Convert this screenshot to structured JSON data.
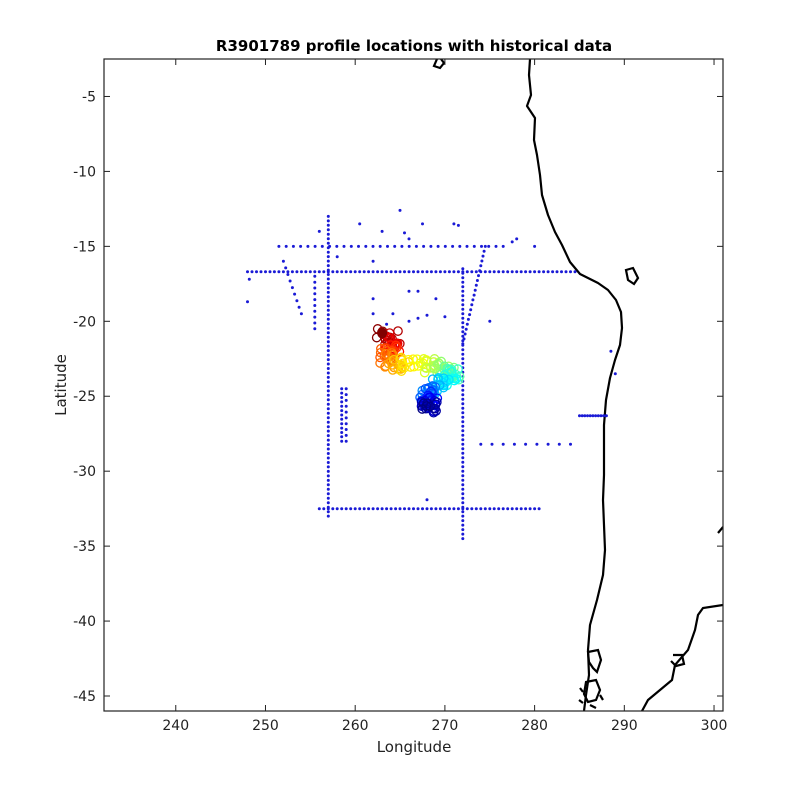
{
  "chart_data": {
    "type": "scatter",
    "title": "R3901789 profile locations with historical data",
    "xlabel": "Longitude",
    "ylabel": "Latitude",
    "xlim": [
      232,
      301
    ],
    "ylim": [
      -46,
      -2.5
    ],
    "xticks": [
      240,
      250,
      260,
      270,
      280,
      290,
      300
    ],
    "yticks": [
      -5,
      -10,
      -15,
      -20,
      -25,
      -30,
      -35,
      -40,
      -45
    ],
    "grid": false,
    "colors": {
      "historical": "#1a1ad6",
      "coastline": "#000000",
      "axis": "#222222"
    },
    "historical_tracks": [
      {
        "from": [
          248,
          -16.7
        ],
        "to": [
          284.5,
          -16.7
        ],
        "step": 0.5
      },
      {
        "from": [
          251.5,
          -15
        ],
        "to": [
          276.5,
          -15
        ],
        "step": 0.8
      },
      {
        "from": [
          256,
          -32.5
        ],
        "to": [
          280.5,
          -32.5
        ],
        "step": 0.5
      },
      {
        "from": [
          257,
          -13
        ],
        "to": [
          257,
          -33
        ],
        "step": 0.3
      },
      {
        "from": [
          272,
          -16.5
        ],
        "to": [
          272,
          -34.5
        ],
        "step": 0.3
      },
      {
        "from": [
          274.5,
          -15
        ],
        "to": [
          272,
          -21.5
        ],
        "step": 0.35
      },
      {
        "from": [
          274,
          -28.2
        ],
        "to": [
          284,
          -28.2
        ],
        "step": 1.25
      },
      {
        "from": [
          285,
          -26.3
        ],
        "to": [
          288,
          -26.3
        ],
        "step": 0.3
      },
      {
        "from": [
          258.5,
          -24.5
        ],
        "to": [
          258.5,
          -28
        ],
        "step": 0.3
      },
      {
        "from": [
          259,
          -24.5
        ],
        "to": [
          259,
          -28
        ],
        "step": 0.4
      },
      {
        "from": [
          252,
          -16
        ],
        "to": [
          254,
          -19.5
        ],
        "step": 0.5
      },
      {
        "from": [
          255.5,
          -17
        ],
        "to": [
          255.5,
          -20.5
        ],
        "step": 0.4
      }
    ],
    "historical_points": [
      [
        248,
        -18.7
      ],
      [
        248.2,
        -17.2
      ],
      [
        256,
        -14
      ],
      [
        260.5,
        -13.5
      ],
      [
        263,
        -14
      ],
      [
        265,
        -12.6
      ],
      [
        265.5,
        -14.1
      ],
      [
        266,
        -14.5
      ],
      [
        267.5,
        -13.5
      ],
      [
        271,
        -13.5
      ],
      [
        271.5,
        -13.6
      ],
      [
        275,
        -20
      ],
      [
        288.5,
        -22
      ],
      [
        289,
        -23.5
      ],
      [
        262,
        -19.5
      ],
      [
        263.5,
        -20.2
      ],
      [
        264.2,
        -19.5
      ],
      [
        266,
        -20
      ],
      [
        267,
        -19.8
      ],
      [
        268,
        -19.6
      ],
      [
        270,
        -19.7
      ],
      [
        268,
        -31.9
      ],
      [
        262,
        -16
      ],
      [
        262,
        -18.5
      ],
      [
        266,
        -18
      ],
      [
        267,
        -18
      ],
      [
        269,
        -18.5
      ],
      [
        258,
        -15.7
      ],
      [
        280,
        -15
      ],
      [
        278,
        -14.5
      ],
      [
        277.5,
        -14.7
      ]
    ],
    "float_profiles": {
      "colormap": "jet",
      "count": 220,
      "start": [
        263,
        -20.8
      ],
      "waypoints": [
        [
          263,
          -20.8
        ],
        [
          264.5,
          -21.3
        ],
        [
          264,
          -22
        ],
        [
          263.5,
          -22.4
        ],
        [
          265,
          -22.8
        ],
        [
          267,
          -23
        ],
        [
          269.5,
          -23
        ],
        [
          271,
          -23.3
        ],
        [
          270.5,
          -24
        ],
        [
          269,
          -24.3
        ],
        [
          268,
          -24.8
        ],
        [
          268.5,
          -25.2
        ],
        [
          268.3,
          -25.6
        ],
        [
          268.2,
          -25.8
        ]
      ]
    }
  }
}
